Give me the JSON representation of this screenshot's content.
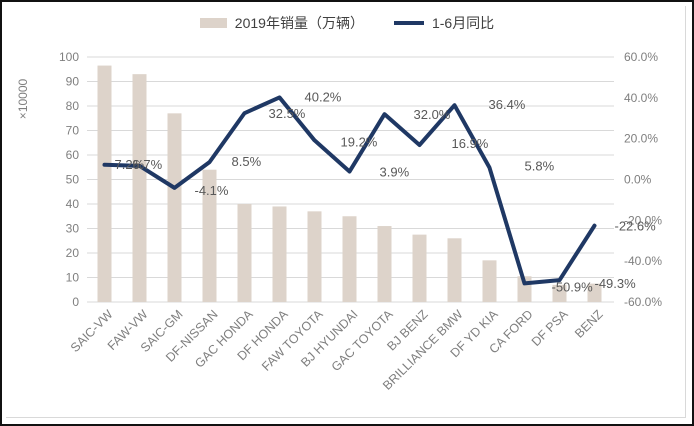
{
  "colors": {
    "bar": "#ddd3ca",
    "line": "#1f3864",
    "grid": "#d9d9d9",
    "axis_text": "#7f7f7f",
    "data_label": "#595959",
    "legend_text": "#404040"
  },
  "left_axis": {
    "title": "×10000",
    "ticks": [
      "100",
      "90",
      "80",
      "70",
      "60",
      "50",
      "40",
      "30",
      "20",
      "10",
      "0"
    ]
  },
  "right_axis": {
    "ticks": [
      "60.0%",
      "40.0%",
      "20.0%",
      "0.0%",
      "-20.0%",
      "-40.0%",
      "-60.0%"
    ]
  },
  "chart_data": {
    "type": "combo",
    "title": "",
    "categories": [
      "SAIC-VW",
      "FAW-VW",
      "SAIC-GM",
      "DF-NISSAN",
      "GAC HONDA",
      "DF HONDA",
      "FAW TOYOTA",
      "BJ HYUNDAI",
      "GAC TOYOTA",
      "BJ BENZ",
      "BRILLIANCE BMW",
      "DF YD KIA",
      "CA FORD",
      "DF PSA",
      "BENZ"
    ],
    "series": [
      {
        "name": "2019年销量（万辆）",
        "type": "bar",
        "axis": "left",
        "values": [
          96.5,
          93,
          77,
          54,
          40,
          39,
          37,
          35,
          31,
          27.5,
          26,
          17,
          10.5,
          7,
          7.5
        ]
      },
      {
        "name": "1-6月同比",
        "type": "line",
        "axis": "right",
        "values": [
          7.2,
          6.7,
          -4.1,
          8.5,
          32.5,
          40.2,
          19.2,
          3.9,
          32.0,
          16.9,
          36.4,
          5.8,
          -50.9,
          -49.3,
          -22.6
        ],
        "labels": [
          "7.2%",
          "6.7%",
          "-4.1%",
          "8.5%",
          "32.5%",
          "40.2%",
          "19.2%",
          "3.9%",
          "32.0%",
          "16.9%",
          "36.4%",
          "5.8%",
          "-50.9%",
          "-49.3%",
          "-22.6%"
        ]
      }
    ],
    "left_axis_range": {
      "min": 0,
      "max": 100,
      "step": 10
    },
    "right_axis_range": {
      "min": -60,
      "max": 60,
      "step": 20
    },
    "grid": true,
    "legend_position": "top"
  }
}
